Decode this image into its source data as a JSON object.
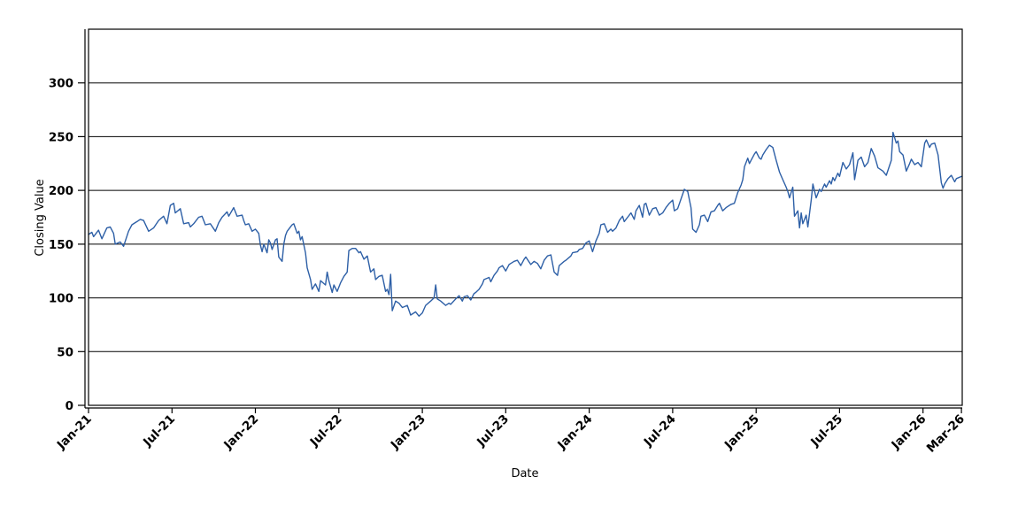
{
  "chart_data": {
    "type": "line",
    "title": "",
    "xlabel": "Date",
    "ylabel": "Closing Value",
    "legend": "none",
    "grid": "horizontal-only",
    "colors": {
      "line": "#2d5fa6",
      "grid": "#000000",
      "axis": "#000000",
      "tick_label": "#000000",
      "background": "#ffffff"
    },
    "x_axis": {
      "unit": "decimal_year",
      "range": [
        2021.0,
        2026.235
      ],
      "tick_rotation_deg": 45,
      "ticks": [
        {
          "t": 2021.0,
          "label": "Jan-21"
        },
        {
          "t": 2021.5,
          "label": "Jul-21"
        },
        {
          "t": 2022.0,
          "label": "Jan-22"
        },
        {
          "t": 2022.5,
          "label": "Jul-22"
        },
        {
          "t": 2023.0,
          "label": "Jan-23"
        },
        {
          "t": 2023.5,
          "label": "Jul-23"
        },
        {
          "t": 2024.0,
          "label": "Jan-24"
        },
        {
          "t": 2024.5,
          "label": "Jul-24"
        },
        {
          "t": 2025.0,
          "label": "Jan-25"
        },
        {
          "t": 2025.5,
          "label": "Jul-25"
        },
        {
          "t": 2026.0,
          "label": "Jan-26"
        },
        {
          "t": 2026.23,
          "label": "Mar-26"
        }
      ]
    },
    "y_axis": {
      "range": [
        0,
        350
      ],
      "ticks": [
        0,
        50,
        100,
        150,
        200,
        250,
        300
      ]
    },
    "series": [
      {
        "name": "Closing Value",
        "color": "#2d5fa6",
        "points": [
          [
            2021.0,
            159
          ],
          [
            2021.02,
            161
          ],
          [
            2021.03,
            157
          ],
          [
            2021.06,
            163
          ],
          [
            2021.08,
            155
          ],
          [
            2021.11,
            165
          ],
          [
            2021.13,
            166
          ],
          [
            2021.15,
            160
          ],
          [
            2021.16,
            150
          ],
          [
            2021.19,
            152
          ],
          [
            2021.21,
            148
          ],
          [
            2021.24,
            162
          ],
          [
            2021.26,
            168
          ],
          [
            2021.29,
            171
          ],
          [
            2021.31,
            173
          ],
          [
            2021.33,
            172
          ],
          [
            2021.36,
            162
          ],
          [
            2021.39,
            165
          ],
          [
            2021.42,
            172
          ],
          [
            2021.45,
            176
          ],
          [
            2021.47,
            169
          ],
          [
            2021.49,
            186
          ],
          [
            2021.51,
            188
          ],
          [
            2021.52,
            179
          ],
          [
            2021.55,
            183
          ],
          [
            2021.57,
            169
          ],
          [
            2021.6,
            170
          ],
          [
            2021.61,
            166
          ],
          [
            2021.63,
            169
          ],
          [
            2021.66,
            175
          ],
          [
            2021.68,
            176
          ],
          [
            2021.7,
            168
          ],
          [
            2021.73,
            169
          ],
          [
            2021.76,
            162
          ],
          [
            2021.78,
            170
          ],
          [
            2021.8,
            175
          ],
          [
            2021.83,
            180
          ],
          [
            2021.84,
            176
          ],
          [
            2021.87,
            184
          ],
          [
            2021.89,
            176
          ],
          [
            2021.92,
            177
          ],
          [
            2021.93,
            172
          ],
          [
            2021.94,
            168
          ],
          [
            2021.96,
            169
          ],
          [
            2021.98,
            162
          ],
          [
            2022.0,
            164
          ],
          [
            2022.02,
            160
          ],
          [
            2022.03,
            149
          ],
          [
            2022.04,
            143
          ],
          [
            2022.05,
            150
          ],
          [
            2022.07,
            142
          ],
          [
            2022.08,
            154
          ],
          [
            2022.09,
            151
          ],
          [
            2022.1,
            145
          ],
          [
            2022.12,
            154
          ],
          [
            2022.13,
            155
          ],
          [
            2022.14,
            138
          ],
          [
            2022.16,
            134
          ],
          [
            2022.17,
            150
          ],
          [
            2022.18,
            158
          ],
          [
            2022.19,
            162
          ],
          [
            2022.21,
            166
          ],
          [
            2022.22,
            168
          ],
          [
            2022.23,
            169
          ],
          [
            2022.25,
            160
          ],
          [
            2022.26,
            162
          ],
          [
            2022.27,
            154
          ],
          [
            2022.28,
            157
          ],
          [
            2022.3,
            142
          ],
          [
            2022.31,
            128
          ],
          [
            2022.33,
            117
          ],
          [
            2022.34,
            108
          ],
          [
            2022.36,
            113
          ],
          [
            2022.38,
            106
          ],
          [
            2022.39,
            116
          ],
          [
            2022.42,
            112
          ],
          [
            2022.43,
            124
          ],
          [
            2022.44,
            116
          ],
          [
            2022.46,
            105
          ],
          [
            2022.47,
            112
          ],
          [
            2022.49,
            106
          ],
          [
            2022.51,
            114
          ],
          [
            2022.53,
            120
          ],
          [
            2022.55,
            124
          ],
          [
            2022.56,
            144
          ],
          [
            2022.58,
            146
          ],
          [
            2022.6,
            146
          ],
          [
            2022.62,
            142
          ],
          [
            2022.63,
            143
          ],
          [
            2022.65,
            136
          ],
          [
            2022.67,
            139
          ],
          [
            2022.69,
            124
          ],
          [
            2022.71,
            127
          ],
          [
            2022.72,
            117
          ],
          [
            2022.74,
            120
          ],
          [
            2022.76,
            121
          ],
          [
            2022.78,
            106
          ],
          [
            2022.79,
            108
          ],
          [
            2022.8,
            103
          ],
          [
            2022.81,
            122
          ],
          [
            2022.82,
            88
          ],
          [
            2022.84,
            97
          ],
          [
            2022.86,
            95
          ],
          [
            2022.88,
            91
          ],
          [
            2022.91,
            93
          ],
          [
            2022.93,
            84
          ],
          [
            2022.96,
            87
          ],
          [
            2022.98,
            83
          ],
          [
            2023.0,
            86
          ],
          [
            2023.02,
            93
          ],
          [
            2023.05,
            97
          ],
          [
            2023.07,
            100
          ],
          [
            2023.08,
            112
          ],
          [
            2023.09,
            99
          ],
          [
            2023.11,
            97
          ],
          [
            2023.14,
            93
          ],
          [
            2023.16,
            95
          ],
          [
            2023.17,
            94
          ],
          [
            2023.2,
            99
          ],
          [
            2023.22,
            102
          ],
          [
            2023.24,
            97
          ],
          [
            2023.25,
            101
          ],
          [
            2023.27,
            102
          ],
          [
            2023.29,
            98
          ],
          [
            2023.31,
            104
          ],
          [
            2023.32,
            105
          ],
          [
            2023.34,
            108
          ],
          [
            2023.36,
            113
          ],
          [
            2023.37,
            117
          ],
          [
            2023.4,
            119
          ],
          [
            2023.41,
            115
          ],
          [
            2023.43,
            121
          ],
          [
            2023.45,
            125
          ],
          [
            2023.46,
            128
          ],
          [
            2023.48,
            130
          ],
          [
            2023.5,
            125
          ],
          [
            2023.52,
            131
          ],
          [
            2023.53,
            132
          ],
          [
            2023.55,
            134
          ],
          [
            2023.57,
            135
          ],
          [
            2023.59,
            130
          ],
          [
            2023.61,
            136
          ],
          [
            2023.62,
            138
          ],
          [
            2023.65,
            131
          ],
          [
            2023.67,
            134
          ],
          [
            2023.69,
            132
          ],
          [
            2023.71,
            127
          ],
          [
            2023.73,
            135
          ],
          [
            2023.75,
            139
          ],
          [
            2023.77,
            140
          ],
          [
            2023.79,
            124
          ],
          [
            2023.81,
            121
          ],
          [
            2023.82,
            130
          ],
          [
            2023.85,
            134
          ],
          [
            2023.86,
            135
          ],
          [
            2023.89,
            139
          ],
          [
            2023.9,
            142
          ],
          [
            2023.93,
            143
          ],
          [
            2023.94,
            145
          ],
          [
            2023.96,
            146
          ],
          [
            2023.98,
            151
          ],
          [
            2024.0,
            153
          ],
          [
            2024.02,
            143
          ],
          [
            2024.04,
            153
          ],
          [
            2024.06,
            160
          ],
          [
            2024.07,
            168
          ],
          [
            2024.09,
            169
          ],
          [
            2024.11,
            161
          ],
          [
            2024.13,
            164
          ],
          [
            2024.14,
            162
          ],
          [
            2024.16,
            165
          ],
          [
            2024.18,
            172
          ],
          [
            2024.2,
            176
          ],
          [
            2024.21,
            171
          ],
          [
            2024.23,
            175
          ],
          [
            2024.25,
            179
          ],
          [
            2024.27,
            173
          ],
          [
            2024.28,
            181
          ],
          [
            2024.3,
            186
          ],
          [
            2024.32,
            175
          ],
          [
            2024.33,
            187
          ],
          [
            2024.34,
            188
          ],
          [
            2024.36,
            177
          ],
          [
            2024.38,
            183
          ],
          [
            2024.4,
            184
          ],
          [
            2024.42,
            177
          ],
          [
            2024.44,
            179
          ],
          [
            2024.46,
            184
          ],
          [
            2024.48,
            188
          ],
          [
            2024.5,
            191
          ],
          [
            2024.51,
            181
          ],
          [
            2024.53,
            183
          ],
          [
            2024.55,
            192
          ],
          [
            2024.57,
            201
          ],
          [
            2024.59,
            199
          ],
          [
            2024.61,
            184
          ],
          [
            2024.62,
            164
          ],
          [
            2024.64,
            161
          ],
          [
            2024.66,
            168
          ],
          [
            2024.67,
            176
          ],
          [
            2024.69,
            177
          ],
          [
            2024.71,
            171
          ],
          [
            2024.73,
            180
          ],
          [
            2024.75,
            181
          ],
          [
            2024.77,
            186
          ],
          [
            2024.78,
            188
          ],
          [
            2024.8,
            181
          ],
          [
            2024.82,
            184
          ],
          [
            2024.84,
            186
          ],
          [
            2024.85,
            187
          ],
          [
            2024.87,
            188
          ],
          [
            2024.89,
            198
          ],
          [
            2024.91,
            205
          ],
          [
            2024.92,
            210
          ],
          [
            2024.93,
            222
          ],
          [
            2024.95,
            230
          ],
          [
            2024.96,
            225
          ],
          [
            2024.97,
            228
          ],
          [
            2024.99,
            234
          ],
          [
            2025.0,
            236
          ],
          [
            2025.02,
            230
          ],
          [
            2025.03,
            229
          ],
          [
            2025.04,
            233
          ],
          [
            2025.06,
            238
          ],
          [
            2025.08,
            242
          ],
          [
            2025.1,
            240
          ],
          [
            2025.12,
            228
          ],
          [
            2025.14,
            217
          ],
          [
            2025.16,
            210
          ],
          [
            2025.18,
            203
          ],
          [
            2025.19,
            199
          ],
          [
            2025.2,
            193
          ],
          [
            2025.22,
            203
          ],
          [
            2025.23,
            176
          ],
          [
            2025.25,
            181
          ],
          [
            2025.26,
            165
          ],
          [
            2025.27,
            179
          ],
          [
            2025.28,
            169
          ],
          [
            2025.3,
            177
          ],
          [
            2025.31,
            166
          ],
          [
            2025.33,
            191
          ],
          [
            2025.34,
            206
          ],
          [
            2025.36,
            193
          ],
          [
            2025.37,
            197
          ],
          [
            2025.38,
            201
          ],
          [
            2025.39,
            199
          ],
          [
            2025.41,
            206
          ],
          [
            2025.42,
            203
          ],
          [
            2025.44,
            209
          ],
          [
            2025.45,
            206
          ],
          [
            2025.46,
            212
          ],
          [
            2025.47,
            209
          ],
          [
            2025.49,
            216
          ],
          [
            2025.5,
            213
          ],
          [
            2025.52,
            226
          ],
          [
            2025.54,
            220
          ],
          [
            2025.56,
            224
          ],
          [
            2025.58,
            235
          ],
          [
            2025.59,
            210
          ],
          [
            2025.61,
            228
          ],
          [
            2025.63,
            231
          ],
          [
            2025.65,
            222
          ],
          [
            2025.67,
            226
          ],
          [
            2025.69,
            239
          ],
          [
            2025.71,
            232
          ],
          [
            2025.73,
            221
          ],
          [
            2025.76,
            218
          ],
          [
            2025.78,
            214
          ],
          [
            2025.81,
            228
          ],
          [
            2025.82,
            254
          ],
          [
            2025.84,
            244
          ],
          [
            2025.85,
            246
          ],
          [
            2025.86,
            236
          ],
          [
            2025.88,
            233
          ],
          [
            2025.9,
            218
          ],
          [
            2025.92,
            225
          ],
          [
            2025.93,
            229
          ],
          [
            2025.95,
            224
          ],
          [
            2025.97,
            226
          ],
          [
            2025.99,
            222
          ],
          [
            2026.01,
            244
          ],
          [
            2026.02,
            247
          ],
          [
            2026.04,
            240
          ],
          [
            2026.05,
            243
          ],
          [
            2026.07,
            244
          ],
          [
            2026.09,
            233
          ],
          [
            2026.11,
            207
          ],
          [
            2026.12,
            202
          ],
          [
            2026.13,
            206
          ],
          [
            2026.15,
            211
          ],
          [
            2026.17,
            214
          ],
          [
            2026.19,
            208
          ],
          [
            2026.2,
            211
          ],
          [
            2026.23,
            213
          ]
        ]
      }
    ]
  }
}
